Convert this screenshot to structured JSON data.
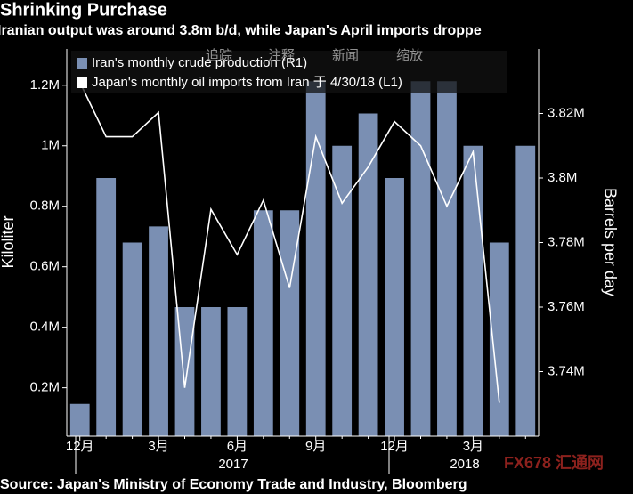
{
  "chart_data": {
    "type": "bar",
    "title": "Shrinking Purchase",
    "subtitle": "Iranian output was around 3.8m b/d, while Japan's April imports droppe",
    "source": "Source: Japan's Ministry of Economy Trade and Industry, Bloomberg",
    "ylabel": "Kiloliter",
    "y2label": "Barrels per day",
    "toolbar": [
      "追踪",
      "注释",
      "新闻",
      "缩放"
    ],
    "watermark": "FX678 汇通网",
    "categories": [
      "12月",
      null,
      null,
      "3月",
      null,
      null,
      "6月",
      null,
      null,
      "9月",
      null,
      null,
      "12月",
      null,
      null,
      "3月",
      null,
      null
    ],
    "years": [
      "2017",
      "2018"
    ],
    "series": [
      {
        "name": "Iran's monthly crude production (R1)",
        "type": "bar",
        "axis": "y2",
        "color": "#7a8fb3",
        "values": [
          3730000,
          3800000,
          3780000,
          3785000,
          3760000,
          3760000,
          3760000,
          3790000,
          3790000,
          3830000,
          3810000,
          3820000,
          3800000,
          3830000,
          3830000,
          3810000,
          3780000,
          3810000
        ]
      },
      {
        "name": "Japan's monthly oil imports from Iran 于 4/30/18 (L1)",
        "type": "line",
        "axis": "y",
        "color": "#ffffff",
        "values": [
          1210000,
          1030000,
          1030000,
          1110000,
          200000,
          790000,
          640000,
          820000,
          530000,
          1030000,
          810000,
          930000,
          1080000,
          1000000,
          800000,
          980000,
          150000,
          null
        ]
      }
    ],
    "ylim": [
      40000,
      1320000
    ],
    "yticks": [
      {
        "value": 200000,
        "label": "0.2M"
      },
      {
        "value": 400000,
        "label": "0.4M"
      },
      {
        "value": 600000,
        "label": "0.6M"
      },
      {
        "value": 800000,
        "label": "0.8M"
      },
      {
        "value": 1000000,
        "label": "1M"
      },
      {
        "value": 1200000,
        "label": "1.2M"
      }
    ],
    "y2lim": [
      3720000,
      3840000
    ],
    "y2ticks": [
      {
        "value": 3740000,
        "label": "3.74M"
      },
      {
        "value": 3760000,
        "label": "3.76M"
      },
      {
        "value": 3780000,
        "label": "3.78M"
      },
      {
        "value": 3800000,
        "label": "3.8M"
      },
      {
        "value": 3820000,
        "label": "3.82M"
      }
    ],
    "background": "#000000"
  }
}
